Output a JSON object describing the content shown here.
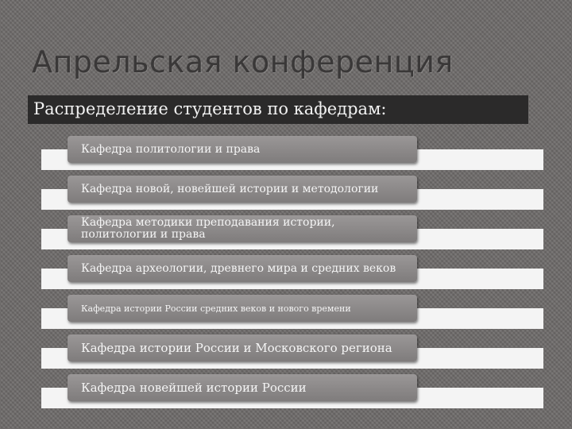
{
  "slide": {
    "title": "Апрельская конференция",
    "subtitle": "Распределение студентов по кафедрам:",
    "items": [
      "Кафедра политологии и права",
      "Кафедра новой, новейшей истории и методологии",
      "Кафедра методики преподавания истории, политологии и права",
      "Кафедра археологии, древнего мира и средних веков",
      "Кафедра истории России средних веков и нового времени",
      "Кафедра истории России и Московского региона",
      "Кафедра новейшей истории России"
    ]
  }
}
